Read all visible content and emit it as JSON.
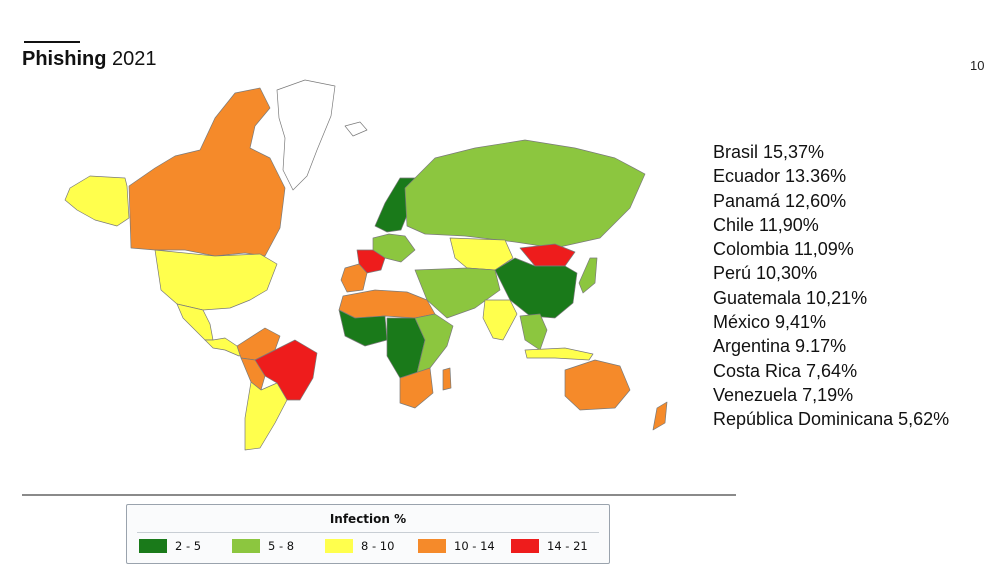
{
  "header": {
    "title_bold": "Phishing",
    "title_year": "2021",
    "page_number": "10"
  },
  "ranking": [
    "Brasil 15,37%",
    "Ecuador 13.36%",
    "Panamá 12,60%",
    "Chile 11,90%",
    "Colombia 11,09%",
    "Perú 10,30%",
    "Guatemala 10,21%",
    "México 9,41%",
    "Argentina 9.17%",
    "Costa Rica 7,64%",
    "Venezuela 7,19%",
    "República Dominicana 5,62%"
  ],
  "legend": {
    "title": "Infection %",
    "items": [
      {
        "label": "2 - 5",
        "color": "#1a7a1a"
      },
      {
        "label": "5 - 8",
        "color": "#8cc63f"
      },
      {
        "label": "8 - 10",
        "color": "#ffff4d"
      },
      {
        "label": "10 - 14",
        "color": "#f58a2a"
      },
      {
        "label": "14 - 21",
        "color": "#ee1c1c"
      }
    ]
  },
  "colors": {
    "dark_green": "#1a7a1a",
    "light_green": "#8cc63f",
    "yellow": "#ffff4d",
    "orange": "#f58a2a",
    "red": "#ee1c1c",
    "no_data": "#ffffff",
    "border": "#7a7a7a"
  },
  "map_regions": [
    {
      "name": "alaska",
      "color": "yellow"
    },
    {
      "name": "canada",
      "color": "orange"
    },
    {
      "name": "greenland",
      "color": "no_data"
    },
    {
      "name": "usa",
      "color": "yellow"
    },
    {
      "name": "mexico",
      "color": "yellow"
    },
    {
      "name": "central-america",
      "color": "yellow"
    },
    {
      "name": "colombia-venezuela",
      "color": "orange"
    },
    {
      "name": "brazil",
      "color": "red"
    },
    {
      "name": "peru",
      "color": "orange"
    },
    {
      "name": "argentina-chile",
      "color": "yellow"
    },
    {
      "name": "iceland",
      "color": "no_data"
    },
    {
      "name": "scandinavia",
      "color": "dark_green"
    },
    {
      "name": "western-europe",
      "color": "light_green"
    },
    {
      "name": "france",
      "color": "red"
    },
    {
      "name": "iberia",
      "color": "orange"
    },
    {
      "name": "russia",
      "color": "light_green"
    },
    {
      "name": "kazakhstan",
      "color": "yellow"
    },
    {
      "name": "mongolia",
      "color": "red"
    },
    {
      "name": "china",
      "color": "dark_green"
    },
    {
      "name": "middle-east",
      "color": "light_green"
    },
    {
      "name": "india",
      "color": "yellow"
    },
    {
      "name": "southeast-asia",
      "color": "light_green"
    },
    {
      "name": "japan",
      "color": "light_green"
    },
    {
      "name": "indonesia",
      "color": "yellow"
    },
    {
      "name": "north-africa",
      "color": "orange"
    },
    {
      "name": "west-africa",
      "color": "dark_green"
    },
    {
      "name": "central-africa",
      "color": "dark_green"
    },
    {
      "name": "east-africa",
      "color": "light_green"
    },
    {
      "name": "southern-africa",
      "color": "orange"
    },
    {
      "name": "madagascar",
      "color": "orange"
    },
    {
      "name": "australia",
      "color": "orange"
    },
    {
      "name": "new-zealand",
      "color": "orange"
    }
  ]
}
